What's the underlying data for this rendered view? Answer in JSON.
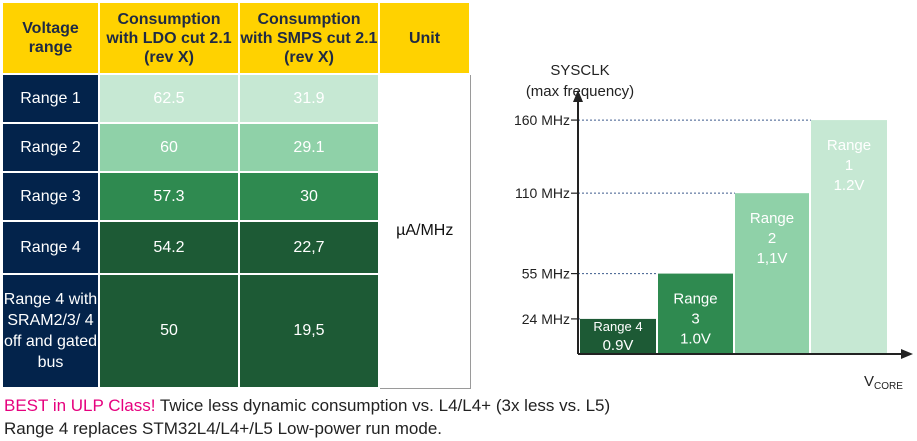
{
  "table": {
    "headers": [
      "Voltage range",
      "Consumption with LDO cut 2.1 (rev X)",
      "Consumption with SMPS cut 2.1 (rev X)",
      "Unit"
    ],
    "rows": [
      {
        "range": "Range 1",
        "ldo": "62.5",
        "smps": "31.9"
      },
      {
        "range": "Range 2",
        "ldo": "60",
        "smps": "29.1"
      },
      {
        "range": "Range 3",
        "ldo": "57.3",
        "smps": "30"
      },
      {
        "range": "Range 4",
        "ldo": "54.2",
        "smps": "22,7"
      },
      {
        "range": "Range 4 with SRAM2/3/ 4 off and gated bus",
        "ldo": "50",
        "smps": "19,5"
      }
    ],
    "unit": "µA/MHz"
  },
  "notes": {
    "line1_highlight": "BEST in ULP Class!",
    "line1_rest": " Twice less dynamic consumption vs. L4/L4+ (3x less vs. L5)",
    "line2": "Range 4 replaces STM32L4/L4+/L5 Low-power run mode."
  },
  "colors": {
    "header": "#FFD200",
    "range_label": "#03234B",
    "range1": "#C6E8D3",
    "range2": "#8FD1A8",
    "range3": "#2F8A50",
    "range4": "#1D5A35"
  },
  "chart_data": {
    "type": "bar",
    "ylabel": "SYSCLK (max frequency)",
    "xlabel_main": "V",
    "xlabel_sub": "CORE",
    "yticks": [
      "160 MHz",
      "110 MHz",
      "55 MHz",
      "24 MHz"
    ],
    "ylim": [
      0,
      175
    ],
    "bars": [
      {
        "range": "Range 4",
        "voltage": "0.9V",
        "value": 24,
        "label_lines": [
          "Range 4",
          "0.9V"
        ],
        "color": "#1D5A35"
      },
      {
        "range": "Range 3",
        "voltage": "1.0V",
        "value": 55,
        "label_lines": [
          "Range",
          "3",
          "1.0V"
        ],
        "color": "#2F8A50"
      },
      {
        "range": "Range 2",
        "voltage": "1,1V",
        "value": 110,
        "label_lines": [
          "Range",
          "2",
          "1,1V"
        ],
        "color": "#8FD1A8"
      },
      {
        "range": "Range 1",
        "voltage": "1.2V",
        "value": 160,
        "label_lines": [
          "Range",
          "1",
          "1.2V"
        ],
        "color": "#C6E8D3"
      }
    ]
  }
}
